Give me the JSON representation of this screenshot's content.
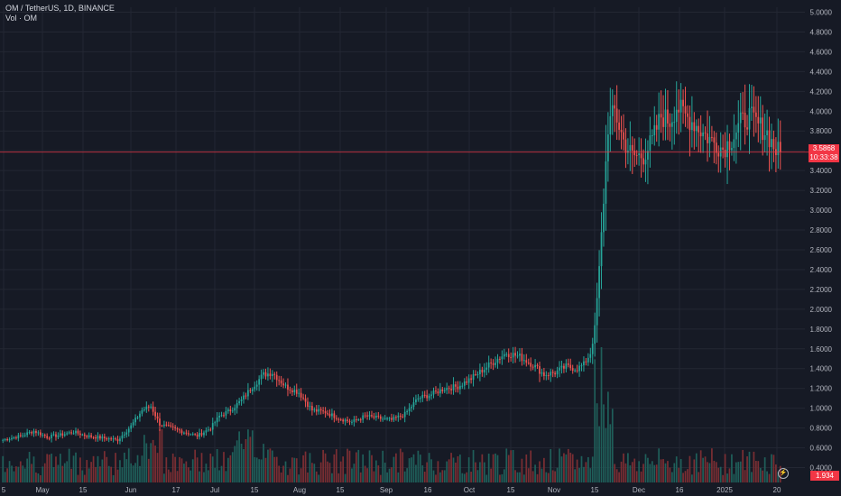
{
  "legend": {
    "symbol_line": "OM / TetherUS, 1D, BINANCE",
    "volume_line": "Vol · OM"
  },
  "price_tag": {
    "price": "3.5868",
    "countdown": "10:33:38"
  },
  "volume_tag": "1.934",
  "zoom_icon": "lightning-bolt-icon",
  "colors": {
    "background": "#161a25",
    "grid": "#232733",
    "axis_text": "#b2b5be",
    "up": "#26a69a",
    "down": "#ef5350",
    "vol_up": "#1f5f5a",
    "vol_down": "#7a2e33",
    "last_price": "#f23645"
  },
  "chart_data": {
    "type": "candlestick",
    "title": "OM / TetherUS, 1D, BINANCE",
    "y_axis": {
      "ticks": [
        "5.0000",
        "4.8000",
        "4.6000",
        "4.4000",
        "4.2000",
        "4.0000",
        "3.8000",
        "3.6000",
        "3.4000",
        "3.2000",
        "3.0000",
        "2.8000",
        "2.6000",
        "2.4000",
        "2.2000",
        "2.0000",
        "1.8000",
        "1.6000",
        "1.4000",
        "1.2000",
        "1.0000",
        "0.8000",
        "0.6000",
        "0.4000"
      ],
      "range": [
        0.25,
        5.05
      ]
    },
    "x_axis": {
      "ticks": [
        "5",
        "May",
        "15",
        "Jun",
        "17",
        "Jul",
        "15",
        "Aug",
        "15",
        "Sep",
        "16",
        "Oct",
        "15",
        "Nov",
        "15",
        "Dec",
        "16",
        "2025",
        "20"
      ]
    },
    "last_price": 3.5868,
    "price_anchors": [
      [
        0,
        0.68
      ],
      [
        8,
        0.72
      ],
      [
        14,
        0.77
      ],
      [
        20,
        0.71
      ],
      [
        26,
        0.73
      ],
      [
        32,
        0.76
      ],
      [
        38,
        0.72
      ],
      [
        45,
        0.7
      ],
      [
        52,
        0.68
      ],
      [
        58,
        0.82
      ],
      [
        63,
        0.98
      ],
      [
        67,
        1.02
      ],
      [
        71,
        0.84
      ],
      [
        76,
        0.8
      ],
      [
        82,
        0.76
      ],
      [
        88,
        0.72
      ],
      [
        94,
        0.8
      ],
      [
        98,
        0.92
      ],
      [
        103,
        0.98
      ],
      [
        108,
        1.08
      ],
      [
        113,
        1.22
      ],
      [
        118,
        1.34
      ],
      [
        122,
        1.36
      ],
      [
        128,
        1.22
      ],
      [
        134,
        1.16
      ],
      [
        140,
        0.98
      ],
      [
        146,
        0.96
      ],
      [
        152,
        0.9
      ],
      [
        158,
        0.86
      ],
      [
        164,
        0.92
      ],
      [
        170,
        0.9
      ],
      [
        176,
        0.88
      ],
      [
        182,
        0.94
      ],
      [
        188,
        1.1
      ],
      [
        194,
        1.14
      ],
      [
        200,
        1.2
      ],
      [
        206,
        1.22
      ],
      [
        212,
        1.3
      ],
      [
        218,
        1.4
      ],
      [
        224,
        1.5
      ],
      [
        228,
        1.56
      ],
      [
        234,
        1.52
      ],
      [
        240,
        1.44
      ],
      [
        245,
        1.34
      ],
      [
        250,
        1.36
      ],
      [
        255,
        1.42
      ],
      [
        260,
        1.4
      ],
      [
        263,
        1.44
      ],
      [
        266,
        1.56
      ],
      [
        268,
        1.8
      ],
      [
        270,
        2.4
      ],
      [
        272,
        3.1
      ],
      [
        274,
        3.85
      ],
      [
        277,
        4.0
      ],
      [
        281,
        3.7
      ],
      [
        285,
        3.55
      ],
      [
        290,
        3.55
      ],
      [
        294,
        3.7
      ],
      [
        298,
        3.95
      ],
      [
        302,
        3.9
      ],
      [
        305,
        4.05
      ],
      [
        309,
        3.95
      ],
      [
        313,
        3.88
      ],
      [
        317,
        3.78
      ],
      [
        321,
        3.7
      ],
      [
        326,
        3.62
      ],
      [
        330,
        3.72
      ],
      [
        334,
        3.88
      ],
      [
        338,
        3.95
      ],
      [
        342,
        3.86
      ],
      [
        346,
        3.78
      ],
      [
        350,
        3.6
      ],
      [
        352,
        3.5868
      ]
    ]
  }
}
